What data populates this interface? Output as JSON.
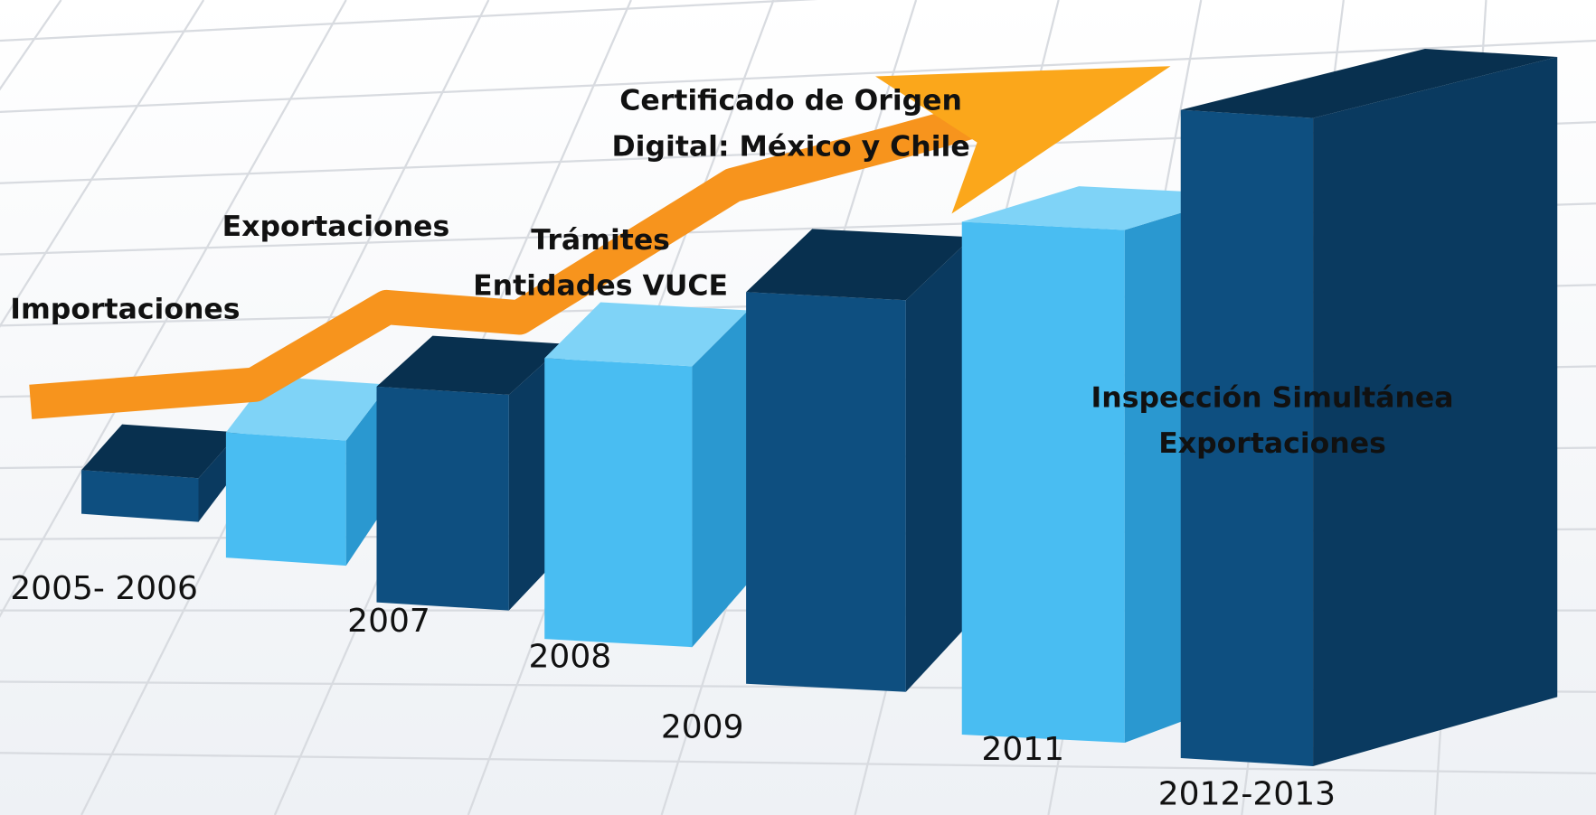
{
  "milestones": [
    {
      "lines": [
        "Importaciones"
      ]
    },
    {
      "lines": [
        "Exportaciones"
      ]
    },
    {
      "lines": [
        "Trámites",
        "Entidades VUCE"
      ]
    },
    {
      "lines": [
        "Certificado de Origen",
        "Digital: México y Chile"
      ]
    },
    {
      "lines": [
        "Inspección Simultánea",
        "Exportaciones"
      ]
    }
  ],
  "years": [
    "2005- 2006",
    "2007",
    "2008",
    "2009",
    "2011",
    "2012-2013"
  ]
}
